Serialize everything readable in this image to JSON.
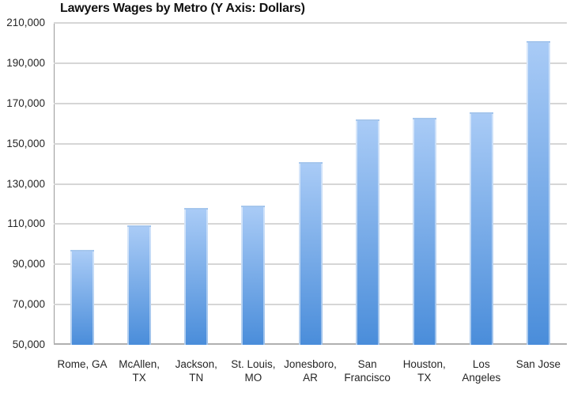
{
  "title": "Lawyers Wages by Metro (Y Axis: Dollars)",
  "chart_data": {
    "type": "bar",
    "title": "Lawyers Wages by Metro (Y Axis: Dollars)",
    "categories": [
      "Rome, GA",
      "McAllen, TX",
      "Jackson, TN",
      "St. Louis, MO",
      "Jonesboro, AR",
      "San Francisco",
      "Houston, TX",
      "Los Angeles",
      "San Jose"
    ],
    "category_label_lines": [
      [
        "Rome, GA"
      ],
      [
        "McAllen,",
        "TX"
      ],
      [
        "Jackson,",
        "TN"
      ],
      [
        "St. Louis,",
        "MO"
      ],
      [
        "Jonesboro,",
        "AR"
      ],
      [
        "San",
        "Francisco"
      ],
      [
        "Houston,",
        "TX"
      ],
      [
        "Los",
        "Angeles"
      ],
      [
        "San Jose"
      ]
    ],
    "values": [
      97000,
      109500,
      118000,
      119000,
      141000,
      162000,
      163000,
      165500,
      201000
    ],
    "xlabel": "",
    "ylabel": "Dollars",
    "ylim": [
      50000,
      210000
    ],
    "ytick_interval": 20000,
    "ytick_labels_bottom_to_top": [
      "50,000",
      "70,000",
      "90,000",
      "110,000",
      "130,000",
      "150,000",
      "170,000",
      "190,000",
      "210,000"
    ],
    "grid": true,
    "legend": false,
    "bar_color_top": "#a9cbf6",
    "bar_color_bottom": "#4a8dda"
  },
  "colors": {
    "background": "#ffffff",
    "gridline": "#d6d6d6",
    "axis_left": "#999999",
    "axis_bottom": "#b0b0b0",
    "text": "#262626",
    "title_text": "#111111"
  }
}
